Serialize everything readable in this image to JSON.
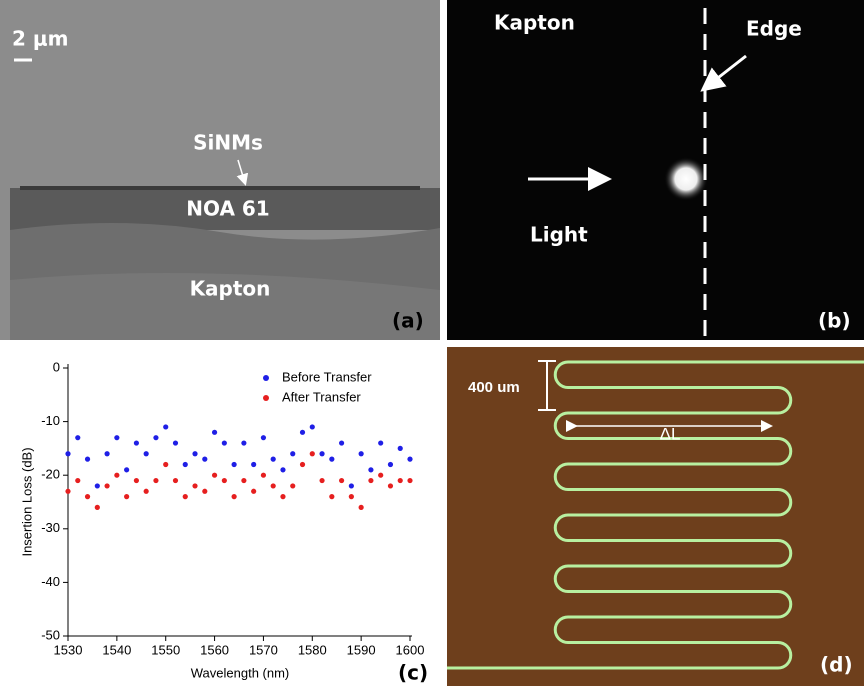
{
  "panels": {
    "a": {
      "scale": "2 μm",
      "layers": [
        "SiNMs",
        "NOA 61",
        "Kapton"
      ],
      "label": "(a)"
    },
    "b": {
      "texts": [
        "Kapton",
        "Edge",
        "Light"
      ],
      "label": "(b)"
    },
    "d": {
      "texts": [
        "400 um",
        "ΔL"
      ],
      "label": "(d)"
    }
  },
  "chart_data": {
    "type": "scatter",
    "panel_label": "(c)",
    "x_label": "Wavelength (nm)",
    "y_label": "Insertion Loss (dB)",
    "x": [
      1530,
      1532,
      1534,
      1536,
      1538,
      1540,
      1542,
      1544,
      1546,
      1548,
      1550,
      1552,
      1554,
      1556,
      1558,
      1560,
      1562,
      1564,
      1566,
      1568,
      1570,
      1572,
      1574,
      1576,
      1578,
      1580,
      1582,
      1584,
      1586,
      1588,
      1590,
      1592,
      1594,
      1596,
      1598,
      1600
    ],
    "series": [
      {
        "name": "Before Transfer",
        "color": "#1f1fe6",
        "values": [
          -16,
          -13,
          -17,
          -22,
          -16,
          -13,
          -19,
          -14,
          -16,
          -13,
          -11,
          -14,
          -18,
          -16,
          -17,
          -12,
          -14,
          -18,
          -14,
          -18,
          -13,
          -17,
          -19,
          -16,
          -12,
          -11,
          -16,
          -17,
          -14,
          -22,
          -16,
          -19,
          -14,
          -18,
          -15,
          -17
        ]
      },
      {
        "name": "After Transfer",
        "color": "#e61f1f",
        "values": [
          -23,
          -21,
          -24,
          -26,
          -22,
          -20,
          -24,
          -21,
          -23,
          -21,
          -18,
          -21,
          -24,
          -22,
          -23,
          -20,
          -21,
          -24,
          -21,
          -23,
          -20,
          -22,
          -24,
          -22,
          -18,
          -16,
          -21,
          -24,
          -21,
          -24,
          -26,
          -21,
          -20,
          -22,
          -21,
          -21
        ]
      }
    ],
    "xlim": [
      1530,
      1600
    ],
    "xticks": [
      1530,
      1540,
      1550,
      1560,
      1570,
      1580,
      1590,
      1600
    ],
    "ylim": [
      -50,
      0
    ],
    "yticks": [
      0,
      -10,
      -20,
      -30,
      -40,
      -50
    ]
  }
}
